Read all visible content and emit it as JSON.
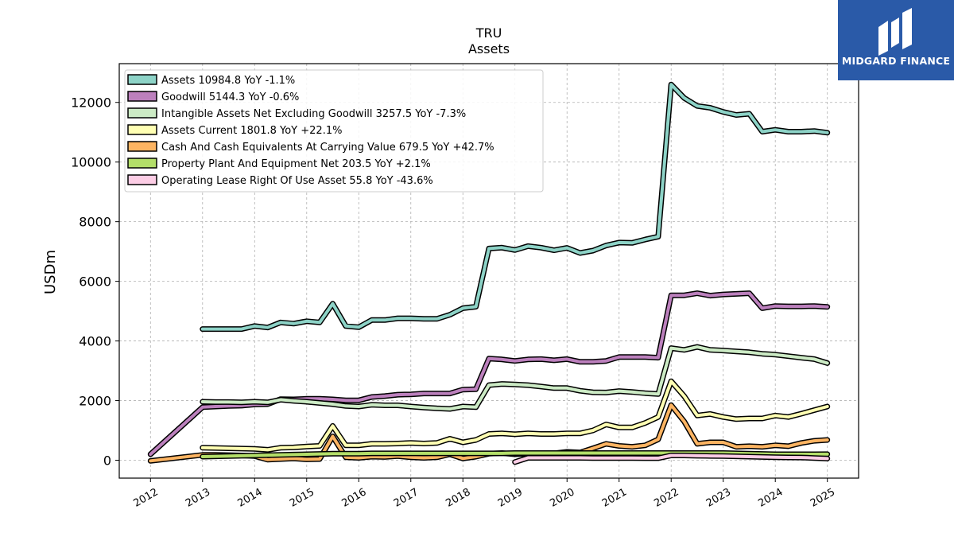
{
  "logo": {
    "text": "MIDGARD FINANCE"
  },
  "chart_data": {
    "type": "line",
    "title": "TRU",
    "subtitle": "Assets",
    "xlabel": "",
    "ylabel": "USDm",
    "xlim": [
      2011.4,
      2025.6
    ],
    "ylim": [
      -600,
      13300
    ],
    "x_ticks": [
      2012,
      2013,
      2014,
      2015,
      2016,
      2017,
      2018,
      2019,
      2020,
      2021,
      2022,
      2023,
      2024,
      2025
    ],
    "y_ticks": [
      0,
      2000,
      4000,
      6000,
      8000,
      10000,
      12000
    ],
    "grid": true,
    "legend_position": "top-left",
    "series": [
      {
        "name": "Assets",
        "legend": "Assets  10984.8 YoY -1.1%",
        "color": "#8dd3c7",
        "x": [
          2013.0,
          2013.25,
          2013.5,
          2013.75,
          2014.0,
          2014.25,
          2014.5,
          2014.75,
          2015.0,
          2015.25,
          2015.5,
          2015.75,
          2016.0,
          2016.25,
          2016.5,
          2016.75,
          2017.0,
          2017.25,
          2017.5,
          2017.75,
          2018.0,
          2018.25,
          2018.5,
          2018.75,
          2019.0,
          2019.25,
          2019.5,
          2019.75,
          2020.0,
          2020.25,
          2020.5,
          2020.75,
          2021.0,
          2021.25,
          2021.5,
          2021.75,
          2022.0,
          2022.25,
          2022.5,
          2022.75,
          2023.0,
          2023.25,
          2023.5,
          2023.75,
          2024.0,
          2024.25,
          2024.5,
          2024.75,
          2025.0
        ],
        "y": [
          4400,
          4400,
          4400,
          4400,
          4500,
          4450,
          4620,
          4580,
          4660,
          4620,
          5250,
          4500,
          4460,
          4700,
          4700,
          4760,
          4760,
          4740,
          4740,
          4880,
          5100,
          5150,
          7100,
          7130,
          7050,
          7180,
          7130,
          7040,
          7120,
          6950,
          7030,
          7200,
          7300,
          7290,
          7400,
          7500,
          12600,
          12150,
          11880,
          11820,
          11680,
          11580,
          11620,
          11020,
          11080,
          11020,
          11020,
          11040,
          10985
        ]
      },
      {
        "name": "Goodwill",
        "legend": "Goodwill  5144.3 YoY -0.6%",
        "color": "#bc80bd",
        "x": [
          2012.0,
          2013.0,
          2013.25,
          2013.5,
          2013.75,
          2014.0,
          2014.25,
          2014.5,
          2014.75,
          2015.0,
          2015.25,
          2015.5,
          2015.75,
          2016.0,
          2016.25,
          2016.5,
          2016.75,
          2017.0,
          2017.25,
          2017.5,
          2017.75,
          2018.0,
          2018.25,
          2018.5,
          2018.75,
          2019.0,
          2019.25,
          2019.5,
          2019.75,
          2020.0,
          2020.25,
          2020.5,
          2020.75,
          2021.0,
          2021.25,
          2021.5,
          2021.75,
          2022.0,
          2022.25,
          2022.5,
          2022.75,
          2023.0,
          2023.25,
          2023.5,
          2023.75,
          2024.0,
          2024.25,
          2024.5,
          2024.75,
          2025.0
        ],
        "y": [
          200,
          1780,
          1800,
          1820,
          1830,
          1870,
          1880,
          2050,
          2040,
          2060,
          2060,
          2040,
          2010,
          2010,
          2120,
          2150,
          2200,
          2210,
          2240,
          2240,
          2240,
          2370,
          2380,
          3410,
          3380,
          3330,
          3380,
          3390,
          3350,
          3390,
          3300,
          3300,
          3330,
          3460,
          3460,
          3460,
          3440,
          5530,
          5530,
          5600,
          5520,
          5560,
          5580,
          5600,
          5100,
          5170,
          5160,
          5160,
          5170,
          5144
        ]
      },
      {
        "name": "Intangible Assets Net Excluding Goodwill",
        "legend": "Intangible Assets Net Excluding Goodwill  3257.5 YoY -7.3%",
        "color": "#ccebc5",
        "x": [
          2013.0,
          2013.25,
          2013.5,
          2013.75,
          2014.0,
          2014.25,
          2014.5,
          2014.75,
          2015.0,
          2015.25,
          2015.5,
          2015.75,
          2016.0,
          2016.25,
          2016.5,
          2016.75,
          2017.0,
          2017.25,
          2017.5,
          2017.75,
          2018.0,
          2018.25,
          2018.5,
          2018.75,
          2019.0,
          2019.25,
          2019.5,
          2019.75,
          2020.0,
          2020.25,
          2020.5,
          2020.75,
          2021.0,
          2021.25,
          2021.5,
          2021.75,
          2022.0,
          2022.25,
          2022.5,
          2022.75,
          2023.0,
          2023.25,
          2023.5,
          2023.75,
          2024.0,
          2024.25,
          2024.5,
          2024.75,
          2025.0
        ],
        "y": [
          1960,
          1950,
          1950,
          1940,
          1960,
          1940,
          2030,
          1990,
          1960,
          1920,
          1880,
          1820,
          1800,
          1860,
          1840,
          1840,
          1800,
          1770,
          1740,
          1720,
          1800,
          1780,
          2520,
          2560,
          2540,
          2520,
          2470,
          2420,
          2420,
          2330,
          2280,
          2270,
          2320,
          2290,
          2250,
          2220,
          3760,
          3700,
          3800,
          3700,
          3680,
          3650,
          3620,
          3570,
          3540,
          3490,
          3440,
          3390,
          3257
        ]
      },
      {
        "name": "Assets Current",
        "legend": "Assets Current  1801.8 YoY +22.1%",
        "color": "#ffffb3",
        "x": [
          2013.0,
          2013.25,
          2013.5,
          2013.75,
          2014.0,
          2014.25,
          2014.5,
          2014.75,
          2015.0,
          2015.25,
          2015.5,
          2015.75,
          2016.0,
          2016.25,
          2016.5,
          2016.75,
          2017.0,
          2017.25,
          2017.5,
          2017.75,
          2018.0,
          2018.25,
          2018.5,
          2018.75,
          2019.0,
          2019.25,
          2019.5,
          2019.75,
          2020.0,
          2020.25,
          2020.5,
          2020.75,
          2021.0,
          2021.25,
          2021.5,
          2021.75,
          2022.0,
          2022.25,
          2022.5,
          2022.75,
          2023.0,
          2023.25,
          2023.5,
          2023.75,
          2024.0,
          2024.25,
          2024.5,
          2024.75,
          2025.0
        ],
        "y": [
          420,
          410,
          400,
          390,
          380,
          350,
          420,
          430,
          460,
          480,
          1150,
          500,
          500,
          550,
          550,
          560,
          580,
          560,
          580,
          720,
          600,
          680,
          880,
          900,
          870,
          900,
          880,
          880,
          900,
          900,
          1000,
          1200,
          1100,
          1100,
          1250,
          1450,
          2650,
          2150,
          1500,
          1550,
          1450,
          1380,
          1400,
          1400,
          1500,
          1450,
          1560,
          1680,
          1802
        ]
      },
      {
        "name": "Cash And Cash Equivalents At Carrying Value",
        "legend": "Cash And Cash Equivalents At Carrying Value  679.5 YoY +42.7%",
        "color": "#fdb462",
        "x": [
          2012.0,
          2013.0,
          2013.25,
          2013.5,
          2013.75,
          2014.0,
          2014.25,
          2014.5,
          2014.75,
          2015.0,
          2015.25,
          2015.5,
          2015.75,
          2016.0,
          2016.25,
          2016.5,
          2016.75,
          2017.0,
          2017.25,
          2017.5,
          2017.75,
          2018.0,
          2018.25,
          2018.5,
          2018.75,
          2019.0,
          2019.25,
          2019.5,
          2019.75,
          2020.0,
          2020.25,
          2020.5,
          2020.75,
          2021.0,
          2021.25,
          2021.5,
          2021.75,
          2022.0,
          2022.25,
          2022.5,
          2022.75,
          2023.0,
          2023.25,
          2023.5,
          2023.75,
          2024.0,
          2024.25,
          2024.5,
          2024.75,
          2025.0
        ],
        "y": [
          -20,
          180,
          180,
          170,
          160,
          140,
          20,
          40,
          60,
          30,
          40,
          800,
          100,
          80,
          120,
          110,
          140,
          100,
          80,
          100,
          200,
          60,
          120,
          220,
          240,
          200,
          220,
          220,
          230,
          280,
          260,
          400,
          550,
          480,
          450,
          500,
          700,
          1850,
          1300,
          550,
          600,
          600,
          450,
          470,
          450,
          500,
          470,
          580,
          650,
          680
        ]
      },
      {
        "name": "Property Plant And Equipment Net",
        "legend": "Property Plant And Equipment Net  203.5 YoY +2.1%",
        "color": "#b3de69",
        "x": [
          2013.0,
          2013.25,
          2013.5,
          2013.75,
          2014.0,
          2014.25,
          2014.5,
          2014.75,
          2015.0,
          2015.25,
          2015.5,
          2015.75,
          2016.0,
          2016.25,
          2016.5,
          2016.75,
          2017.0,
          2017.25,
          2017.5,
          2017.75,
          2018.0,
          2018.25,
          2018.5,
          2018.75,
          2019.0,
          2019.25,
          2019.5,
          2019.75,
          2020.0,
          2020.25,
          2020.5,
          2020.75,
          2021.0,
          2021.25,
          2021.5,
          2021.75,
          2022.0,
          2022.25,
          2022.5,
          2022.75,
          2023.0,
          2023.25,
          2023.5,
          2023.75,
          2024.0,
          2024.25,
          2024.5,
          2024.75,
          2025.0
        ],
        "y": [
          120,
          130,
          140,
          150,
          160,
          170,
          180,
          190,
          200,
          210,
          220,
          220,
          220,
          230,
          230,
          230,
          230,
          230,
          230,
          230,
          230,
          230,
          230,
          230,
          240,
          240,
          240,
          240,
          240,
          240,
          240,
          240,
          240,
          240,
          240,
          240,
          240,
          240,
          240,
          240,
          240,
          230,
          220,
          210,
          200,
          200,
          200,
          200,
          204
        ]
      },
      {
        "name": "Operating Lease Right Of Use Asset",
        "legend": "Operating Lease Right Of Use Asset  55.8 YoY -43.6%",
        "color": "#fccde5",
        "x": [
          2019.0,
          2019.25,
          2019.5,
          2019.75,
          2020.0,
          2020.25,
          2020.5,
          2020.75,
          2021.0,
          2021.25,
          2021.5,
          2021.75,
          2022.0,
          2022.25,
          2022.5,
          2022.75,
          2023.0,
          2023.25,
          2023.5,
          2023.75,
          2024.0,
          2024.25,
          2024.5,
          2024.75,
          2025.0
        ],
        "y": [
          -60,
          80,
          80,
          80,
          80,
          80,
          75,
          75,
          75,
          75,
          70,
          70,
          160,
          160,
          150,
          145,
          140,
          130,
          120,
          110,
          100,
          95,
          90,
          75,
          56
        ]
      }
    ]
  }
}
